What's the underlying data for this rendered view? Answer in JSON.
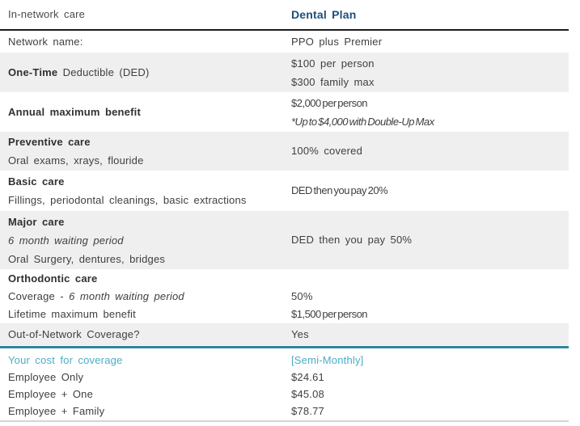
{
  "colors": {
    "plan_header_navy": "#1f4e79",
    "cost_accent_blue": "#4bacc6",
    "divider_teal": "#31859c",
    "row_shade_gray": "#efefef",
    "header_rule_black": "#1b1b1b"
  },
  "header": {
    "left": "In-network care",
    "plan": "Dental Plan"
  },
  "rows": {
    "network": {
      "label": "Network name:",
      "value": "PPO plus Premier"
    },
    "deductible": {
      "label_bold": "One-Time",
      "label_rest": " Deductible (DED)",
      "value1": "$100 per person",
      "value2": "$300 family max"
    },
    "annual": {
      "label": "Annual maximum benefit",
      "value1": "$2,000 per person",
      "value2": "*Up to $4,000 with Double-Up Max"
    },
    "preventive": {
      "title": "Preventive care",
      "sub": "Oral exams, xrays, flouride",
      "value": "100% covered"
    },
    "basic": {
      "title": "Basic care",
      "sub": "Fillings, periodontal cleanings, basic extractions",
      "value": "DED then you pay 20%"
    },
    "major": {
      "title": "Major care",
      "wait_period": "6 month waiting period",
      "sub": "Oral Surgery, dentures, bridges",
      "value": "DED then you pay 50%"
    },
    "ortho": {
      "title": "Orthodontic care",
      "coverage_prefix": "Coverage - ",
      "coverage_italic": "6 month waiting period",
      "coverage_value": "50%",
      "lifetime_label": "Lifetime maximum benefit",
      "lifetime_value": "$1,500 per person"
    },
    "oon": {
      "label": "Out-of-Network Coverage?",
      "value": "Yes"
    }
  },
  "cost": {
    "title": "Your cost for coverage",
    "frequency": "[Semi-Monthly]",
    "tiers": [
      {
        "label": "Employee Only",
        "value": "$24.61"
      },
      {
        "label": "Employee + One",
        "value": "$45.08"
      },
      {
        "label": "Employee + Family",
        "value": "$78.77"
      }
    ]
  }
}
